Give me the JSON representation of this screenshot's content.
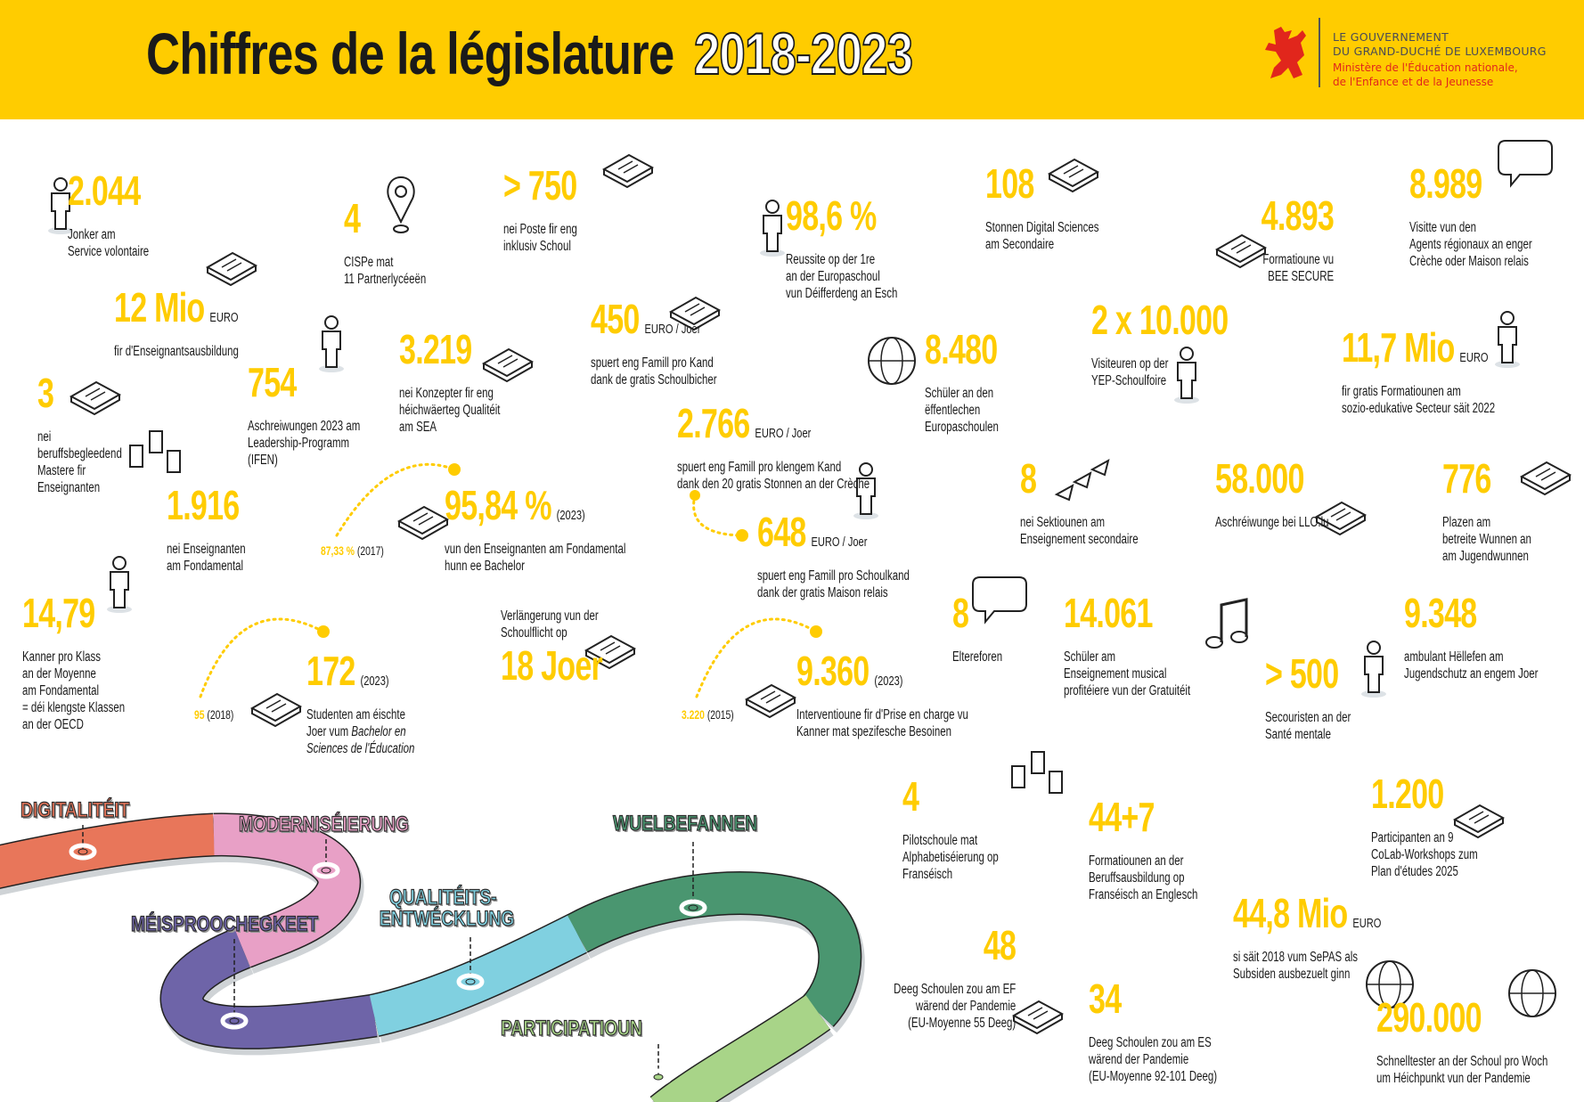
{
  "header": {
    "title": "Chiffres de la législature",
    "years": "2018-2023",
    "logo": {
      "line1": "LE GOUVERNEMENT",
      "line2": "DU GRAND-DUCHÉ DE LUXEMBOURG",
      "line3": "Ministère de l'Éducation nationale,",
      "line4": "de l'Enfance et de la Jeunesse"
    }
  },
  "colors": {
    "accent": "#ffcc00",
    "header_bg": "#ffcc00",
    "logo_red": "#e1261c",
    "text": "#1a1a1a"
  },
  "stats": [
    {
      "value": "2.044",
      "desc": [
        "Jonker am",
        "Service volontaire"
      ]
    },
    {
      "value": "4",
      "desc": [
        "CISPe mat",
        "11 Partnerlycéeën"
      ]
    },
    {
      "value": "> 750",
      "desc": [
        "nei Poste fir eng",
        "inklusiv Schoul"
      ]
    },
    {
      "value": "98,6 %",
      "desc": [
        "Reussite op der 1re",
        "an der Europaschoul",
        "vun Déifferdeng an Esch"
      ]
    },
    {
      "value": "108",
      "desc": [
        "Stonnen Digital Sciences",
        "am Secondaire"
      ]
    },
    {
      "value": "4.893",
      "desc": [
        "Formatioune vu",
        "BEE SECURE"
      ]
    },
    {
      "value": "8.989",
      "desc": [
        "Visitte vun den",
        "Agents régionaux an enger",
        "Crèche oder Maison relais"
      ]
    },
    {
      "value": "12 Mio",
      "unit": "EURO",
      "desc": [
        "fir d'Enseignantsausbildung"
      ]
    },
    {
      "value": "450",
      "unit": "EURO / Joer",
      "desc": [
        "spuert eng Famill pro Kand",
        "dank de gratis Schoulbicher"
      ]
    },
    {
      "value": "3",
      "desc": [
        "nei",
        "beruffsbegleedend",
        "Mastere fir",
        "Enseignanten"
      ]
    },
    {
      "value": "754",
      "desc": [
        "Aschreiwungen 2023 am",
        "Leadership-Programm",
        "(IFEN)"
      ]
    },
    {
      "value": "3.219",
      "desc": [
        "nei Konzepter fir eng",
        "héichwäerteg Qualitéit",
        "am SEA"
      ]
    },
    {
      "value": "8.480",
      "desc": [
        "Schüler an den",
        "ëffentlechen",
        "Europaschoulen"
      ]
    },
    {
      "value": "2 x 10.000",
      "desc": [
        "Visiteuren op der",
        "YEP-Schoulfoire"
      ]
    },
    {
      "value": "11,7 Mio",
      "unit": "EURO",
      "desc": [
        "fir gratis Formatiounen am",
        "sozio-edukative Secteur säit 2022"
      ]
    },
    {
      "value": "2.766",
      "unit": "EURO / Joer",
      "desc": [
        "spuert eng Famill pro klengem Kand",
        "dank den 20 gratis Stonnen an der  Crèche"
      ]
    },
    {
      "value": "1.916",
      "desc": [
        "nei Enseignanten",
        "am Fondamental"
      ]
    },
    {
      "value": "95,84 %",
      "year": "(2023)",
      "past_value": "87,33 %",
      "past_year": "(2017)",
      "desc": [
        "vun den Enseignanten am Fondamental",
        "hunn ee Bachelor"
      ]
    },
    {
      "value": "8",
      "desc": [
        "nei Sektiounen am",
        "Enseignement secondaire"
      ]
    },
    {
      "value": "58.000",
      "desc": [
        "Aschréiwunge bei LLO.lu"
      ]
    },
    {
      "value": "776",
      "desc": [
        "Plazen am",
        "betreite Wunnen an",
        "am Jugendwunnen"
      ]
    },
    {
      "value": "648",
      "unit": "EURO / Joer",
      "desc": [
        "spuert eng Famill pro Schoulkand",
        "dank der gratis Maison relais"
      ]
    },
    {
      "value": "14,79",
      "desc": [
        "Kanner pro Klass",
        "an der Moyenne",
        "am Fondamental",
        "= déi klengste Klassen",
        "an der OECD"
      ]
    },
    {
      "value": "8",
      "desc": [
        "Eltereforen"
      ]
    },
    {
      "value": "14.061",
      "desc": [
        "Schüler am",
        "Enseignement musical",
        "profitéiere vun der Gratuitéit"
      ]
    },
    {
      "value": "9.348",
      "desc": [
        "ambulant Hëllefen am",
        "Jugendschutz an engem Joer"
      ]
    },
    {
      "value": "> 500",
      "desc": [
        "Secouristen an der",
        "Santé mentale"
      ]
    },
    {
      "value": "18 Joer",
      "lead": [
        "Verlängerung vun der",
        "Schoulflicht op"
      ],
      "desc": []
    },
    {
      "value": "172",
      "year": "(2023)",
      "past_value": "95",
      "past_year": "(2018)",
      "desc": [
        "Studenten am éischte",
        "Joer vum ",
        "Bachelor en",
        "Sciences de l'Éducation"
      ]
    },
    {
      "value": "9.360",
      "year": "(2023)",
      "past_value": "3.220",
      "past_year": "(2015)",
      "desc": [
        "Interventioune fir d'Prise en charge vu",
        "Kanner mat spezifesche Besoinen"
      ]
    },
    {
      "value": "4",
      "desc": [
        "Pilotschoule mat",
        "Alphabetiséierung op",
        "Franséisch"
      ]
    },
    {
      "value": "44+7",
      "desc": [
        "Formatiounen an der",
        "Beruffsausbildung op",
        "Franséisch an Englesch"
      ]
    },
    {
      "value": "1.200",
      "desc": [
        "Participanten an 9",
        "CoLab-Workshops zum",
        "Plan d'études 2025"
      ]
    },
    {
      "value": "44,8 Mio",
      "unit": "EURO",
      "desc": [
        "si säit 2018 vum SePAS als",
        "Subsiden ausbezuelt ginn"
      ]
    },
    {
      "value": "48",
      "desc": [
        "Deeg Schoulen zou am EF",
        "wärend der Pandemie",
        "(EU-Moyenne 55 Deeg)"
      ]
    },
    {
      "value": "34",
      "desc": [
        "Deeg Schoulen zou am ES",
        "wärend der Pandemie",
        "(EU-Moyenne 92-101 Deeg)"
      ]
    },
    {
      "value": "290.000",
      "desc": [
        "Schnelltester an der Schoul pro Woch",
        "um Héichpunkt vun der Pandemie"
      ]
    }
  ],
  "road": {
    "segments": [
      {
        "label": "DIGITALITÉIT",
        "color": "#e8765a"
      },
      {
        "label": "MODERNISÉIERUNG",
        "color": "#e8a0c6"
      },
      {
        "label": "MÉISPROOCHEGKEET",
        "color": "#6e64a8"
      },
      {
        "label": "QUALITÉITS-",
        "label2": "ENTWÉCKLUNG",
        "color": "#80d0e0"
      },
      {
        "label": "WUELBEFANNEN",
        "color": "#4a9670"
      },
      {
        "label": "PARTICIPATIOUN",
        "color": "#a8d488"
      }
    ]
  },
  "icons": [
    "volunteer-person-icon",
    "map-pin-icon",
    "teacher-chair-icon",
    "graduate-person-icon",
    "digital-board-icon",
    "laptop-video-icon",
    "speech-bubble-people-icon",
    "chalkboard-icon",
    "books-icon",
    "certificate-icon",
    "thinking-person-icon",
    "tablet-icon",
    "globe-icon",
    "people-group-icon",
    "care-workers-icon",
    "abc-letters-icon",
    "diploma-stairs-icon",
    "parent-child-icon",
    "triangles-icon",
    "laptop-icon",
    "basketball-hoop-icon",
    "protest-sign-person-icon",
    "speech-bubble-icon",
    "music-note-icon",
    "helper-people-icon",
    "pen-eraser-icon",
    "graduation-cap-stairs-icon",
    "signpost-icon",
    "fren-letters-icon",
    "plan-card-icon",
    "money-bag-icon",
    "computer-bulb-icon",
    "virus-icon"
  ]
}
